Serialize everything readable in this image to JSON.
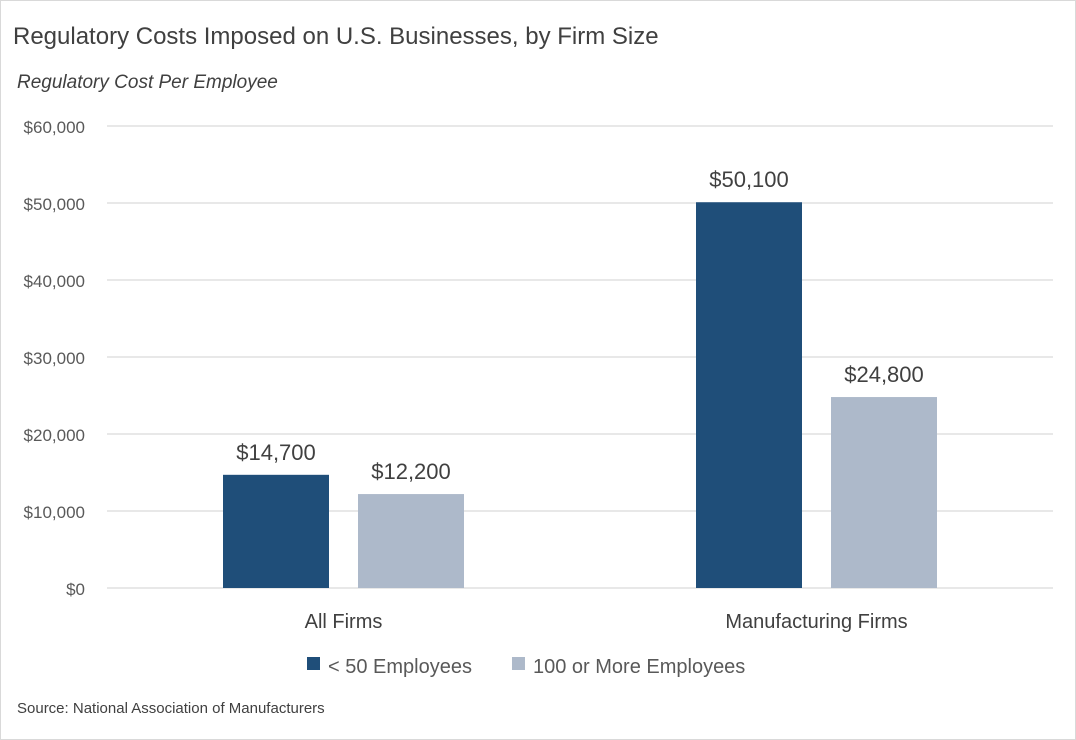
{
  "chart_data": {
    "type": "bar",
    "title": "Regulatory Costs Imposed on U.S. Businesses, by Firm Size",
    "subtitle": "Regulatory Cost Per Employee",
    "categories": [
      "All Firms",
      "Manufacturing Firms"
    ],
    "series": [
      {
        "name": "< 50 Employees",
        "values": [
          14700,
          50100
        ],
        "labels": [
          "$14,700",
          "$50,100"
        ],
        "color": "#1f4e79"
      },
      {
        "name": "100 or More Employees",
        "values": [
          12200,
          24800
        ],
        "labels": [
          "$12,200",
          "$24,800"
        ],
        "color": "#adb9ca"
      }
    ],
    "ylim": [
      0,
      60000
    ],
    "yticks": [
      0,
      10000,
      20000,
      30000,
      40000,
      50000,
      60000
    ],
    "ytick_labels": [
      "$0",
      "$10,000",
      "$20,000",
      "$30,000",
      "$40,000",
      "$50,000",
      "$60,000"
    ],
    "grid": true,
    "legend_position": "bottom",
    "source": "Source: National Association of Manufacturers"
  }
}
